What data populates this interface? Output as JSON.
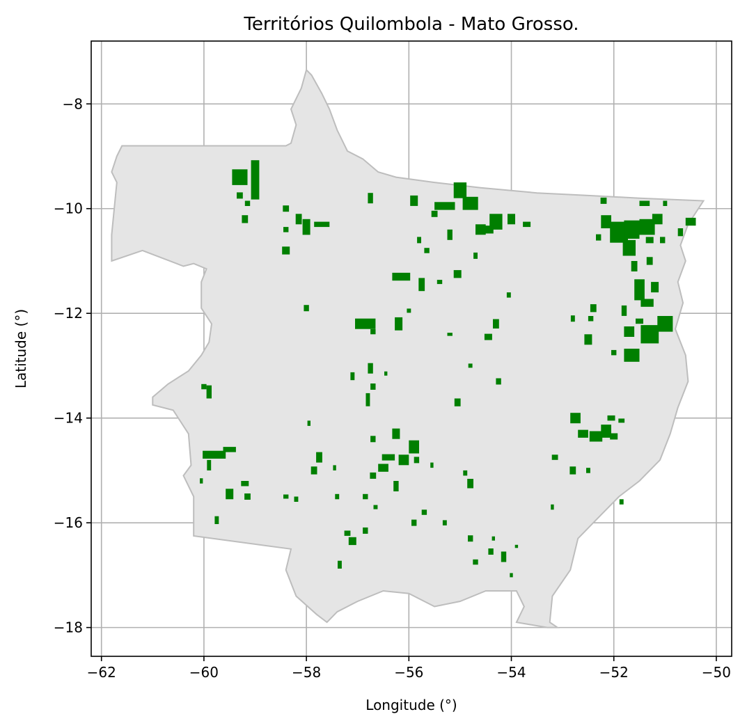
{
  "title": "Territórios Quilombola - Mato Grosso.",
  "xlabel": "Longitude (°)",
  "ylabel": "Latitude (°)",
  "colors": {
    "state_fill": "#e5e5e5",
    "state_edge": "#bdbdbd",
    "territory": "#007f00",
    "grid": "#b0b0b0"
  },
  "chart_data": {
    "type": "map",
    "xlim": [
      -62.2,
      -49.7
    ],
    "ylim": [
      -18.55,
      -6.8
    ],
    "xticks": [
      -62,
      -60,
      -58,
      -56,
      -54,
      -52,
      -50
    ],
    "yticks": [
      -8,
      -10,
      -12,
      -14,
      -16,
      -18
    ],
    "xtick_labels": [
      "−62",
      "−60",
      "−58",
      "−56",
      "−54",
      "−52",
      "−50"
    ],
    "ytick_labels": [
      "−8",
      "−10",
      "−12",
      "−14",
      "−16",
      "−18"
    ],
    "grid": true,
    "state_outline": [
      [
        -61.6,
        -8.8
      ],
      [
        -58.4,
        -8.8
      ],
      [
        -58.3,
        -8.75
      ],
      [
        -58.2,
        -8.4
      ],
      [
        -58.3,
        -8.1
      ],
      [
        -58.1,
        -7.7
      ],
      [
        -58.0,
        -7.35
      ],
      [
        -57.9,
        -7.45
      ],
      [
        -57.7,
        -7.8
      ],
      [
        -57.55,
        -8.1
      ],
      [
        -57.4,
        -8.5
      ],
      [
        -57.2,
        -8.9
      ],
      [
        -56.9,
        -9.05
      ],
      [
        -56.6,
        -9.3
      ],
      [
        -56.25,
        -9.4
      ],
      [
        -55.5,
        -9.5
      ],
      [
        -54.6,
        -9.6
      ],
      [
        -53.5,
        -9.7
      ],
      [
        -52.5,
        -9.75
      ],
      [
        -51.5,
        -9.8
      ],
      [
        -50.25,
        -9.85
      ],
      [
        -50.55,
        -10.3
      ],
      [
        -50.7,
        -10.7
      ],
      [
        -50.6,
        -11.0
      ],
      [
        -50.75,
        -11.4
      ],
      [
        -50.65,
        -11.8
      ],
      [
        -50.8,
        -12.3
      ],
      [
        -50.6,
        -12.8
      ],
      [
        -50.55,
        -13.3
      ],
      [
        -50.75,
        -13.8
      ],
      [
        -50.9,
        -14.3
      ],
      [
        -51.1,
        -14.8
      ],
      [
        -51.5,
        -15.2
      ],
      [
        -51.9,
        -15.5
      ],
      [
        -52.3,
        -15.9
      ],
      [
        -52.7,
        -16.3
      ],
      [
        -52.85,
        -16.9
      ],
      [
        -53.2,
        -17.4
      ],
      [
        -53.25,
        -17.9
      ],
      [
        -53.1,
        -18.0
      ],
      [
        -53.3,
        -18.0
      ],
      [
        -53.9,
        -17.9
      ],
      [
        -53.75,
        -17.6
      ],
      [
        -53.9,
        -17.3
      ],
      [
        -54.5,
        -17.3
      ],
      [
        -55.0,
        -17.5
      ],
      [
        -55.5,
        -17.6
      ],
      [
        -56.0,
        -17.35
      ],
      [
        -56.5,
        -17.3
      ],
      [
        -57.0,
        -17.5
      ],
      [
        -57.4,
        -17.7
      ],
      [
        -57.6,
        -17.9
      ],
      [
        -57.8,
        -17.75
      ],
      [
        -58.2,
        -17.4
      ],
      [
        -58.4,
        -16.9
      ],
      [
        -58.3,
        -16.5
      ],
      [
        -60.2,
        -16.25
      ],
      [
        -60.2,
        -15.5
      ],
      [
        -60.4,
        -15.1
      ],
      [
        -60.25,
        -14.9
      ],
      [
        -60.3,
        -14.3
      ],
      [
        -60.6,
        -13.85
      ],
      [
        -61.0,
        -13.75
      ],
      [
        -61.0,
        -13.6
      ],
      [
        -60.7,
        -13.35
      ],
      [
        -60.3,
        -13.1
      ],
      [
        -60.05,
        -12.8
      ],
      [
        -59.9,
        -12.55
      ],
      [
        -59.85,
        -12.2
      ],
      [
        -60.05,
        -11.9
      ],
      [
        -60.05,
        -11.4
      ],
      [
        -59.95,
        -11.15
      ],
      [
        -60.2,
        -11.05
      ],
      [
        -60.4,
        -11.1
      ],
      [
        -61.2,
        -10.8
      ],
      [
        -61.8,
        -11.0
      ],
      [
        -61.8,
        -10.5
      ],
      [
        -61.75,
        -10.0
      ],
      [
        -61.7,
        -9.5
      ],
      [
        -61.8,
        -9.3
      ],
      [
        -61.7,
        -9.0
      ]
    ],
    "territories": [
      [
        -59.0,
        -9.45,
        0.16,
        0.75
      ],
      [
        -59.3,
        -9.4,
        0.3,
        0.3
      ],
      [
        -59.3,
        -9.75,
        0.12,
        0.12
      ],
      [
        -59.15,
        -9.9,
        0.1,
        0.1
      ],
      [
        -59.2,
        -10.2,
        0.12,
        0.15
      ],
      [
        -58.4,
        -10.0,
        0.12,
        0.12
      ],
      [
        -58.4,
        -10.8,
        0.15,
        0.15
      ],
      [
        -58.15,
        -10.2,
        0.12,
        0.2
      ],
      [
        -58.0,
        -10.35,
        0.15,
        0.3
      ],
      [
        -57.7,
        -10.3,
        0.3,
        0.1
      ],
      [
        -58.4,
        -10.4,
        0.1,
        0.1
      ],
      [
        -58.0,
        -11.9,
        0.1,
        0.12
      ],
      [
        -56.75,
        -9.8,
        0.1,
        0.2
      ],
      [
        -55.9,
        -9.85,
        0.15,
        0.2
      ],
      [
        -55.0,
        -9.65,
        0.25,
        0.3
      ],
      [
        -55.3,
        -9.95,
        0.4,
        0.15
      ],
      [
        -54.8,
        -9.9,
        0.3,
        0.25
      ],
      [
        -55.5,
        -10.1,
        0.12,
        0.12
      ],
      [
        -54.3,
        -10.25,
        0.25,
        0.3
      ],
      [
        -54.5,
        -10.4,
        0.3,
        0.15
      ],
      [
        -54.0,
        -10.2,
        0.15,
        0.2
      ],
      [
        -54.6,
        -10.4,
        0.2,
        0.2
      ],
      [
        -53.7,
        -10.3,
        0.15,
        0.1
      ],
      [
        -55.2,
        -10.5,
        0.1,
        0.2
      ],
      [
        -55.8,
        -10.6,
        0.08,
        0.12
      ],
      [
        -56.15,
        -11.3,
        0.35,
        0.15
      ],
      [
        -55.75,
        -11.45,
        0.12,
        0.25
      ],
      [
        -55.4,
        -11.4,
        0.1,
        0.08
      ],
      [
        -55.05,
        -11.25,
        0.15,
        0.15
      ],
      [
        -55.65,
        -10.8,
        0.1,
        0.1
      ],
      [
        -54.7,
        -10.9,
        0.08,
        0.12
      ],
      [
        -54.05,
        -11.65,
        0.08,
        0.1
      ],
      [
        -56.85,
        -12.2,
        0.4,
        0.2
      ],
      [
        -56.7,
        -12.35,
        0.1,
        0.1
      ],
      [
        -56.2,
        -12.2,
        0.15,
        0.25
      ],
      [
        -56.0,
        -11.95,
        0.08,
        0.08
      ],
      [
        -54.3,
        -12.2,
        0.12,
        0.18
      ],
      [
        -54.45,
        -12.45,
        0.15,
        0.12
      ],
      [
        -55.2,
        -12.4,
        0.1,
        0.06
      ],
      [
        -56.75,
        -13.05,
        0.1,
        0.2
      ],
      [
        -56.7,
        -13.4,
        0.1,
        0.12
      ],
      [
        -57.1,
        -13.2,
        0.08,
        0.15
      ],
      [
        -56.45,
        -13.15,
        0.06,
        0.08
      ],
      [
        -55.05,
        -13.7,
        0.12,
        0.15
      ],
      [
        -54.8,
        -13.0,
        0.08,
        0.08
      ],
      [
        -54.25,
        -13.3,
        0.1,
        0.12
      ],
      [
        -56.8,
        -13.65,
        0.08,
        0.25
      ],
      [
        -57.95,
        -14.1,
        0.06,
        0.1
      ],
      [
        -52.4,
        -11.9,
        0.12,
        0.15
      ],
      [
        -52.45,
        -12.1,
        0.1,
        0.1
      ],
      [
        -52.5,
        -12.5,
        0.15,
        0.2
      ],
      [
        -51.8,
        -11.95,
        0.1,
        0.2
      ],
      [
        -51.7,
        -12.35,
        0.2,
        0.2
      ],
      [
        -51.5,
        -12.15,
        0.15,
        0.1
      ],
      [
        -51.3,
        -12.4,
        0.35,
        0.35
      ],
      [
        -51.0,
        -12.2,
        0.3,
        0.3
      ],
      [
        -51.35,
        -11.8,
        0.25,
        0.15
      ],
      [
        -51.5,
        -11.55,
        0.2,
        0.4
      ],
      [
        -51.2,
        -11.5,
        0.15,
        0.2
      ],
      [
        -51.65,
        -12.8,
        0.3,
        0.25
      ],
      [
        -52.0,
        -12.75,
        0.1,
        0.1
      ],
      [
        -52.8,
        -12.1,
        0.08,
        0.12
      ],
      [
        -51.9,
        -10.45,
        0.35,
        0.4
      ],
      [
        -51.65,
        -10.4,
        0.3,
        0.35
      ],
      [
        -51.35,
        -10.35,
        0.3,
        0.3
      ],
      [
        -52.15,
        -10.25,
        0.2,
        0.25
      ],
      [
        -51.7,
        -10.75,
        0.25,
        0.3
      ],
      [
        -51.15,
        -10.2,
        0.2,
        0.2
      ],
      [
        -51.3,
        -10.6,
        0.15,
        0.12
      ],
      [
        -51.05,
        -10.6,
        0.1,
        0.12
      ],
      [
        -51.4,
        -9.9,
        0.2,
        0.1
      ],
      [
        -51.0,
        -9.9,
        0.08,
        0.1
      ],
      [
        -52.2,
        -9.85,
        0.12,
        0.12
      ],
      [
        -50.5,
        -10.25,
        0.2,
        0.15
      ],
      [
        -50.7,
        -10.45,
        0.1,
        0.15
      ],
      [
        -51.3,
        -11.0,
        0.12,
        0.15
      ],
      [
        -51.6,
        -11.1,
        0.12,
        0.2
      ],
      [
        -52.3,
        -10.55,
        0.1,
        0.12
      ],
      [
        -59.9,
        -13.5,
        0.1,
        0.25
      ],
      [
        -60.0,
        -13.4,
        0.1,
        0.1
      ],
      [
        -59.8,
        -14.7,
        0.45,
        0.15
      ],
      [
        -59.5,
        -14.6,
        0.25,
        0.1
      ],
      [
        -59.9,
        -14.9,
        0.08,
        0.2
      ],
      [
        -59.2,
        -15.25,
        0.15,
        0.1
      ],
      [
        -59.5,
        -15.45,
        0.15,
        0.2
      ],
      [
        -59.15,
        -15.5,
        0.12,
        0.12
      ],
      [
        -58.4,
        -15.5,
        0.1,
        0.08
      ],
      [
        -58.2,
        -15.55,
        0.08,
        0.1
      ],
      [
        -59.75,
        -15.95,
        0.08,
        0.15
      ],
      [
        -60.05,
        -15.2,
        0.06,
        0.1
      ],
      [
        -57.75,
        -14.75,
        0.12,
        0.2
      ],
      [
        -57.85,
        -15.0,
        0.12,
        0.15
      ],
      [
        -57.45,
        -14.95,
        0.06,
        0.1
      ],
      [
        -56.7,
        -14.4,
        0.1,
        0.12
      ],
      [
        -56.25,
        -14.3,
        0.15,
        0.2
      ],
      [
        -55.9,
        -14.55,
        0.2,
        0.25
      ],
      [
        -56.4,
        -14.75,
        0.25,
        0.12
      ],
      [
        -56.1,
        -14.8,
        0.2,
        0.2
      ],
      [
        -56.5,
        -14.95,
        0.2,
        0.15
      ],
      [
        -56.7,
        -15.1,
        0.12,
        0.12
      ],
      [
        -55.85,
        -14.8,
        0.1,
        0.12
      ],
      [
        -55.55,
        -14.9,
        0.06,
        0.1
      ],
      [
        -56.25,
        -15.3,
        0.1,
        0.2
      ],
      [
        -57.4,
        -15.5,
        0.08,
        0.1
      ],
      [
        -56.85,
        -15.5,
        0.1,
        0.1
      ],
      [
        -56.65,
        -15.7,
        0.08,
        0.08
      ],
      [
        -56.85,
        -16.15,
        0.1,
        0.12
      ],
      [
        -57.2,
        -16.2,
        0.12,
        0.1
      ],
      [
        -57.1,
        -16.35,
        0.15,
        0.15
      ],
      [
        -57.35,
        -16.8,
        0.08,
        0.15
      ],
      [
        -55.9,
        -16.0,
        0.1,
        0.12
      ],
      [
        -55.7,
        -15.8,
        0.1,
        0.1
      ],
      [
        -55.3,
        -16.0,
        0.08,
        0.1
      ],
      [
        -54.8,
        -15.25,
        0.12,
        0.18
      ],
      [
        -54.9,
        -15.05,
        0.08,
        0.1
      ],
      [
        -54.8,
        -16.3,
        0.1,
        0.12
      ],
      [
        -54.4,
        -16.55,
        0.1,
        0.12
      ],
      [
        -54.15,
        -16.65,
        0.1,
        0.2
      ],
      [
        -54.7,
        -16.75,
        0.1,
        0.1
      ],
      [
        -54.35,
        -16.3,
        0.06,
        0.08
      ],
      [
        -53.9,
        -16.45,
        0.06,
        0.06
      ],
      [
        -54.0,
        -17.0,
        0.06,
        0.08
      ],
      [
        -52.75,
        -14.0,
        0.2,
        0.2
      ],
      [
        -52.6,
        -14.3,
        0.2,
        0.15
      ],
      [
        -52.35,
        -14.35,
        0.25,
        0.2
      ],
      [
        -52.15,
        -14.25,
        0.2,
        0.25
      ],
      [
        -52.05,
        -14.0,
        0.15,
        0.1
      ],
      [
        -51.85,
        -14.05,
        0.12,
        0.08
      ],
      [
        -52.0,
        -14.35,
        0.15,
        0.12
      ],
      [
        -52.8,
        -15.0,
        0.12,
        0.15
      ],
      [
        -53.15,
        -14.75,
        0.12,
        0.1
      ],
      [
        -52.5,
        -15.0,
        0.08,
        0.1
      ],
      [
        -51.85,
        -15.6,
        0.08,
        0.1
      ],
      [
        -53.2,
        -15.7,
        0.06,
        0.1
      ]
    ]
  }
}
